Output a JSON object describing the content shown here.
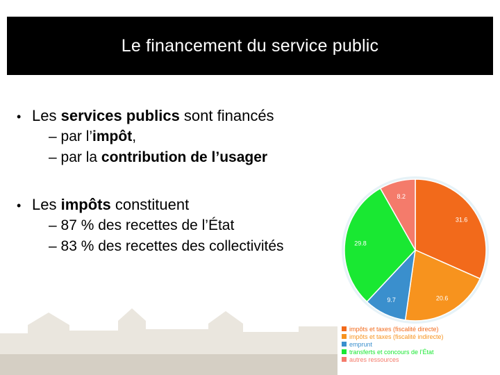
{
  "slide": {
    "title": "Le financement du service public"
  },
  "bullets": [
    {
      "parts": [
        {
          "text": "Les ",
          "bold": false
        },
        {
          "text": "services publics",
          "bold": true
        },
        {
          "text": " sont financés",
          "bold": false
        }
      ],
      "subs": [
        [
          {
            "text": "– par l’",
            "bold": false
          },
          {
            "text": "impôt",
            "bold": true
          },
          {
            "text": ",",
            "bold": false
          }
        ],
        [
          {
            "text": "– par la ",
            "bold": false
          },
          {
            "text": "contribution de l’usager",
            "bold": true
          }
        ]
      ]
    },
    {
      "parts": [
        {
          "text": "Les ",
          "bold": false
        },
        {
          "text": "impôts",
          "bold": true
        },
        {
          "text": " constituent",
          "bold": false
        }
      ],
      "subs": [
        [
          {
            "text": "– 87 % des recettes de l’État",
            "bold": false
          }
        ],
        [
          {
            "text": "– 83 % des recettes des collectivités",
            "bold": false
          }
        ]
      ]
    }
  ],
  "chart_data": {
    "type": "pie",
    "categories": [
      "impôts et taxes (fiscalité directe)",
      "impôts et taxes (fiscalité indirecte)",
      "emprunt",
      "transferts et concours de l’État",
      "autres ressources"
    ],
    "values": [
      31.6,
      20.6,
      9.7,
      29.8,
      8.2
    ],
    "value_labels": [
      "31.6",
      "20.6",
      "9.7",
      "29.8",
      "8.2"
    ],
    "colors": [
      "#f26a1b",
      "#f7931e",
      "#3a8fcd",
      "#19e832",
      "#f47b6b"
    ],
    "legend_placement": "bottom"
  }
}
